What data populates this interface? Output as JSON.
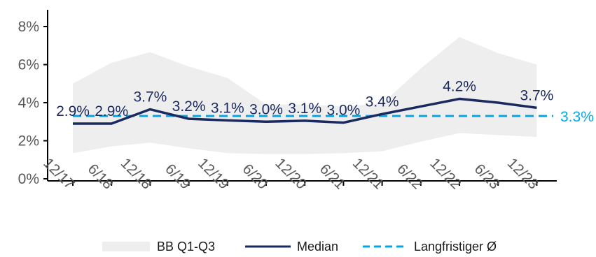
{
  "chart_data": {
    "type": "line",
    "title": "",
    "xlabel": "",
    "ylabel": "",
    "categories": [
      "12/17",
      "6/18",
      "12/18",
      "6/19",
      "12/19",
      "6/20",
      "12/20",
      "6/21",
      "12/21",
      "6/22",
      "12/22",
      "6/23",
      "12/23"
    ],
    "ylim": [
      0,
      8
    ],
    "y_ticks": [
      "0%",
      "2%",
      "4%",
      "6%",
      "8%"
    ],
    "y_tick_values": [
      0,
      2,
      4,
      6,
      8
    ],
    "grid": false,
    "legend_position": "bottom",
    "series": [
      {
        "name": "Median",
        "color": "#1b2a5e",
        "values": [
          2.9,
          2.9,
          3.65,
          3.15,
          3.07,
          3.0,
          3.05,
          2.95,
          3.4,
          3.8,
          4.2,
          4.0,
          3.73
        ],
        "labels": [
          "2.9%",
          "2.9%",
          "3.7%",
          "3.2%",
          "3.1%",
          "3.0%",
          "3.1%",
          "3.0%",
          "3.4%",
          "",
          "4.2%",
          "",
          "3.7%"
        ]
      },
      {
        "name": "Langfristiger Ø",
        "color": "#00a8e8",
        "style": "dashed",
        "value": 3.3,
        "label": "3.3%"
      }
    ],
    "band": {
      "name": "BB Q1-Q3",
      "color": "#eeeeee",
      "upper": [
        5.0,
        6.1,
        6.65,
        5.9,
        5.3,
        3.9,
        3.9,
        3.8,
        3.95,
        5.8,
        7.45,
        6.6,
        6.0
      ],
      "lower": [
        1.35,
        1.7,
        1.9,
        1.6,
        1.35,
        1.3,
        1.3,
        1.35,
        1.45,
        1.95,
        2.4,
        2.3,
        2.2
      ]
    },
    "legend": [
      "BB Q1-Q3",
      "Median",
      "Langfristiger Ø"
    ]
  }
}
